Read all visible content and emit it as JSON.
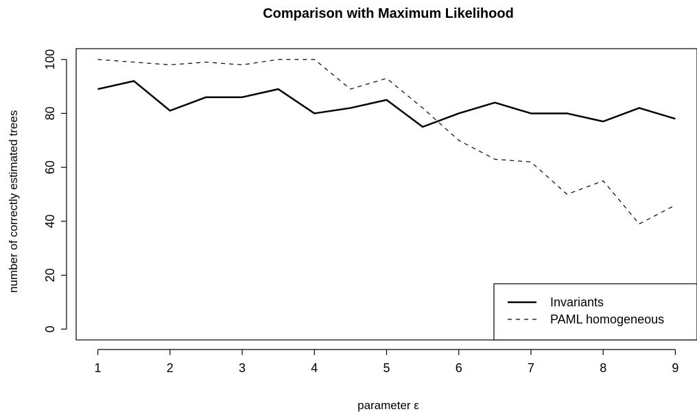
{
  "chart_data": {
    "type": "line",
    "title": "Comparison with Maximum Likelihood",
    "xlabel": "parameter ε",
    "ylabel": "number of correctly estimated trees",
    "xlim": [
      0.7,
      9.3
    ],
    "ylim": [
      -4,
      104
    ],
    "x_ticks": [
      1,
      2,
      3,
      4,
      5,
      6,
      7,
      8,
      9
    ],
    "y_ticks": [
      0,
      20,
      40,
      60,
      80,
      100
    ],
    "x": [
      1,
      1.5,
      2,
      2.5,
      3,
      3.5,
      4,
      4.5,
      5,
      5.5,
      6,
      6.5,
      7,
      7.5,
      8,
      8.5,
      9
    ],
    "series": [
      {
        "name": "Invariants",
        "style": "solid",
        "color": "#000000",
        "values": [
          89,
          92,
          81,
          86,
          86,
          89,
          80,
          82,
          85,
          75,
          80,
          84,
          80,
          80,
          77,
          82,
          78
        ]
      },
      {
        "name": "PAML homogeneous",
        "style": "dashed",
        "color": "#000000",
        "values": [
          100,
          99,
          98,
          99,
          98,
          100,
          100,
          89,
          93,
          82,
          70,
          63,
          62,
          50,
          55,
          39,
          46
        ]
      }
    ],
    "legend": "bottom-right",
    "grid": false
  }
}
